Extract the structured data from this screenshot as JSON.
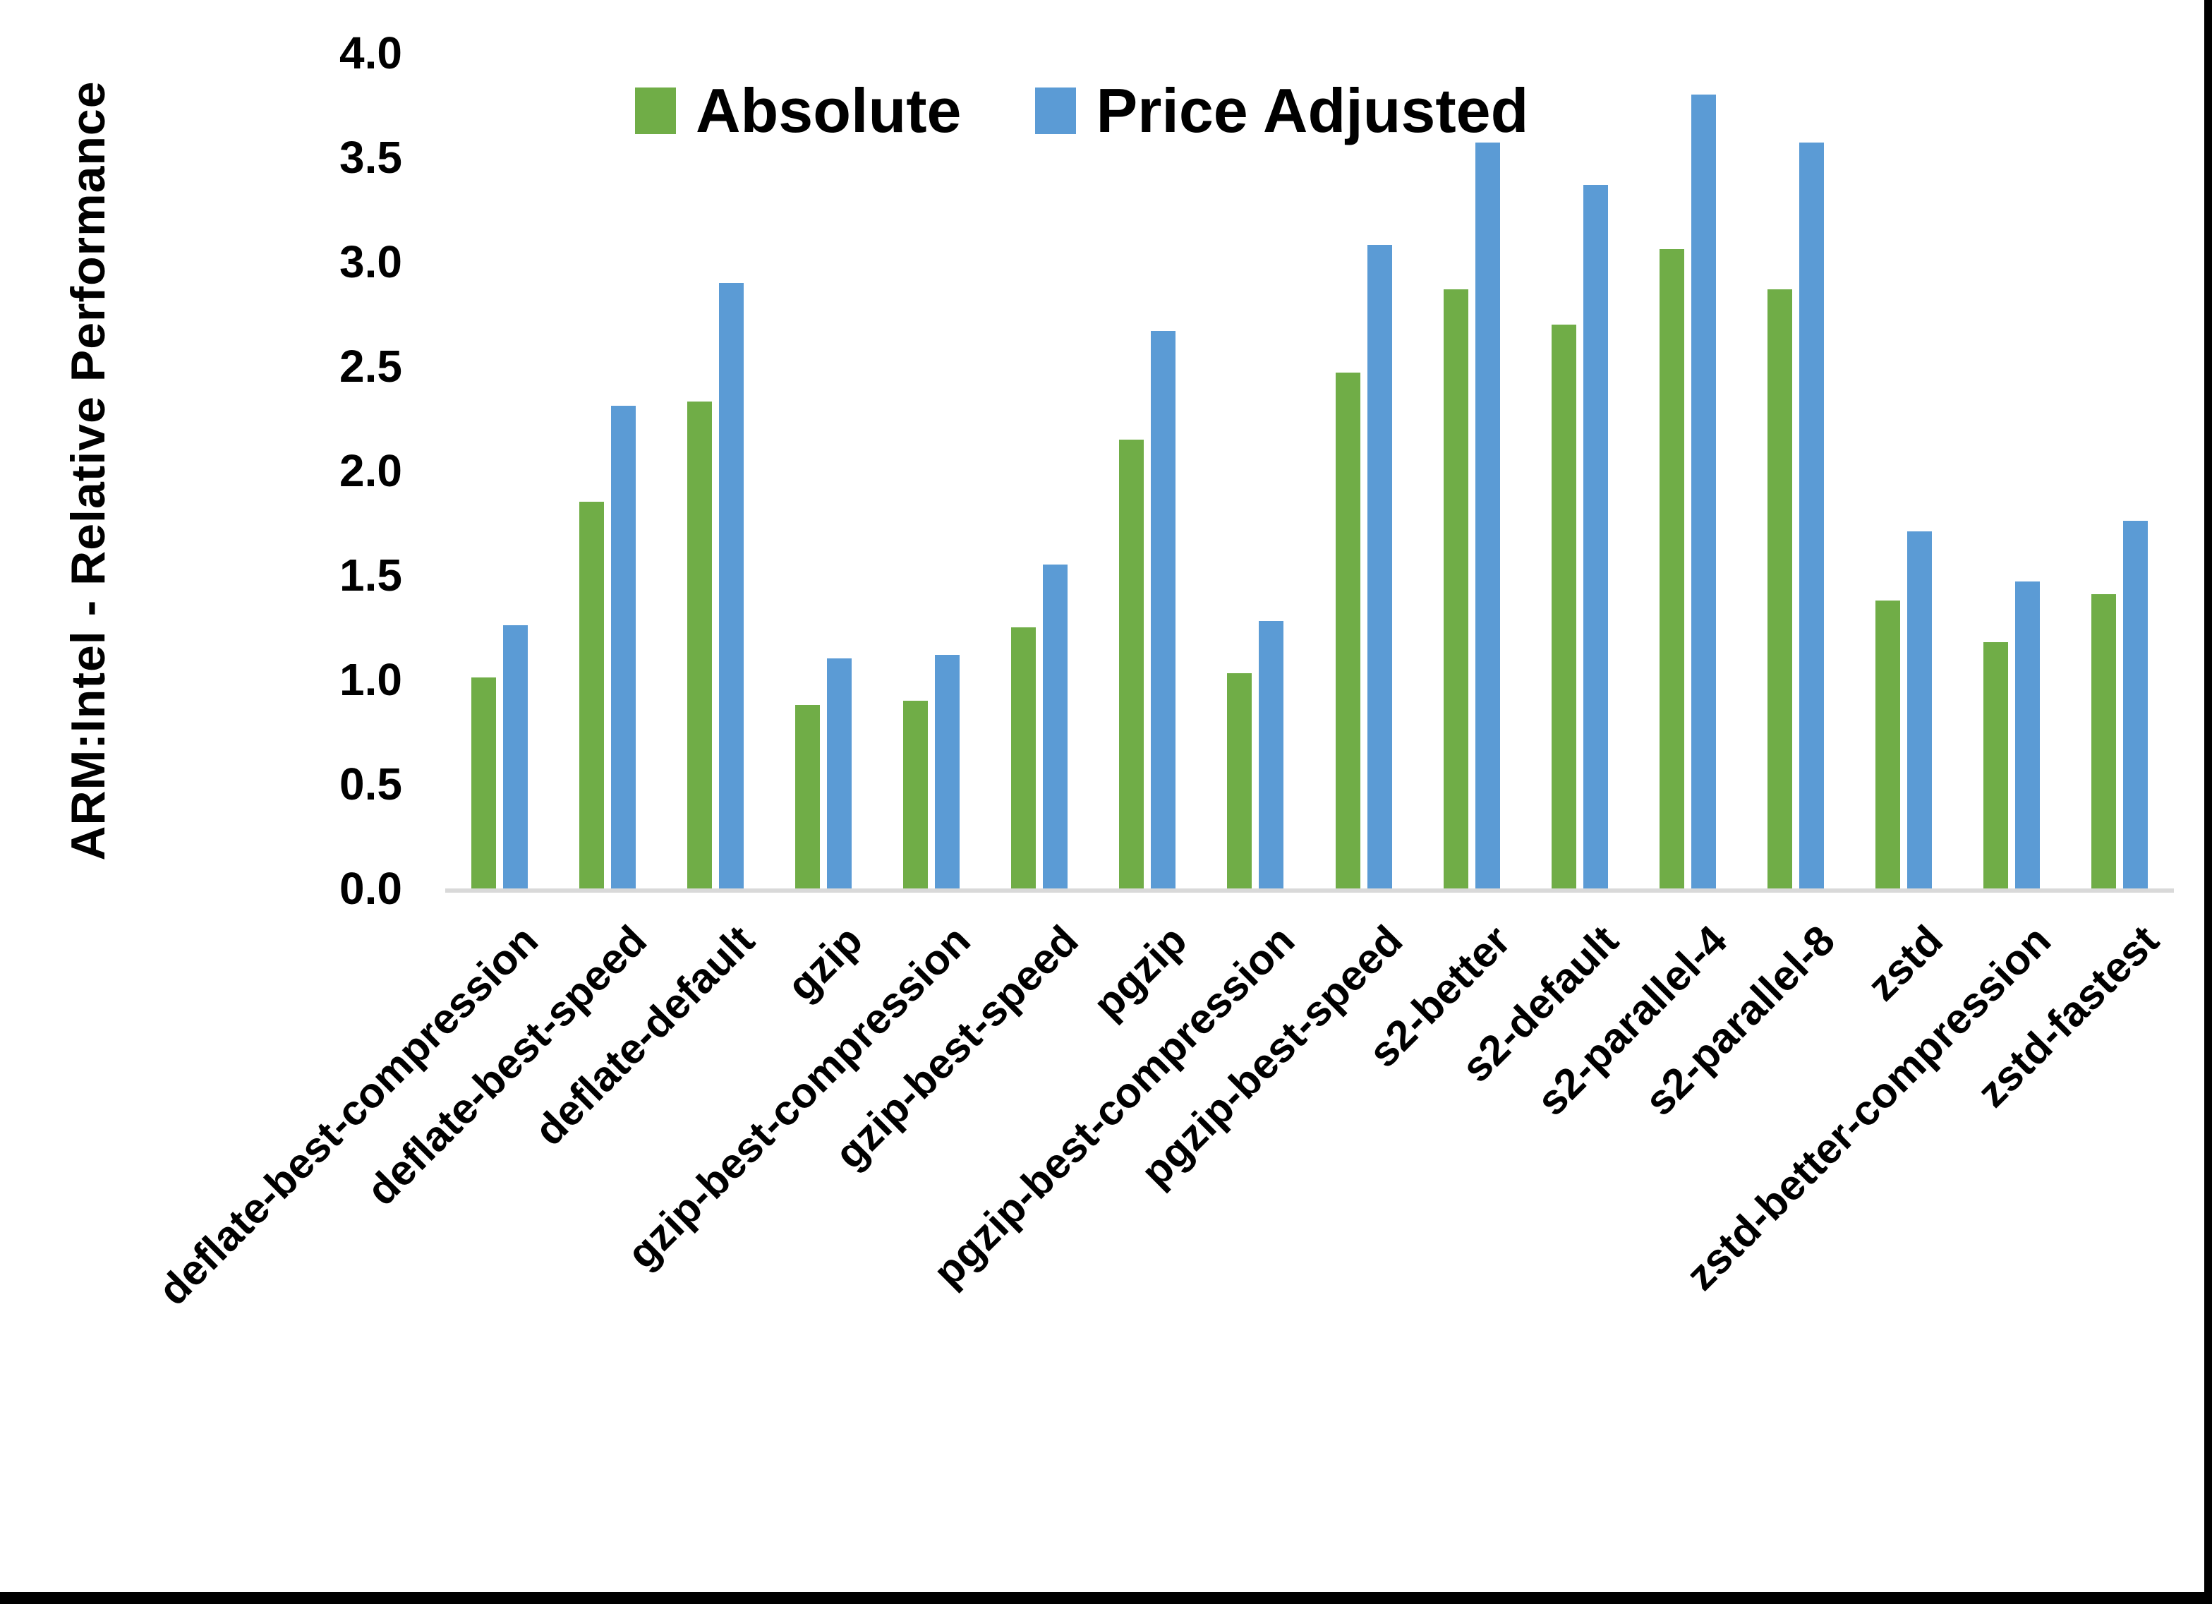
{
  "figure": {
    "background": "#FFFFFF",
    "frame_color": "#000000"
  },
  "legend": {
    "items": [
      {
        "label": "Absolute",
        "color": "#70AD47"
      },
      {
        "label": "Price Adjusted",
        "color": "#5B9BD5"
      }
    ]
  },
  "chart_data": {
    "type": "bar",
    "title": "",
    "xlabel": "",
    "ylabel": "ARM:Intel - Relative Performance",
    "ylim": [
      0.0,
      4.0
    ],
    "ytick_step": 0.5,
    "ytick_labels": [
      "4.0",
      "3.5",
      "3.0",
      "2.5",
      "2.0",
      "1.5",
      "1.0",
      "0.5",
      "0.0"
    ],
    "grid": false,
    "legend_position": "top-inside",
    "axis_line_color": "#D9D9D9",
    "categories": [
      "deflate-best-compression",
      "deflate-best-speed",
      "deflate-default",
      "gzip",
      "gzip-best-compression",
      "gzip-best-speed",
      "pgzip",
      "pgzip-best-compression",
      "pgzip-best-speed",
      "s2-better",
      "s2-default",
      "s2-parallel-4",
      "s2-parallel-8",
      "zstd",
      "zstd-better-compression",
      "zstd-fastest"
    ],
    "series": [
      {
        "name": "Absolute",
        "color": "#70AD47",
        "values": [
          1.01,
          1.85,
          2.33,
          0.88,
          0.9,
          1.25,
          2.15,
          1.03,
          2.47,
          2.87,
          2.7,
          3.06,
          2.87,
          1.38,
          1.18,
          1.41
        ]
      },
      {
        "name": "Price Adjusted",
        "color": "#5B9BD5",
        "values": [
          1.26,
          2.31,
          2.9,
          1.1,
          1.12,
          1.55,
          2.67,
          1.28,
          3.08,
          3.57,
          3.37,
          3.8,
          3.57,
          1.71,
          1.47,
          1.76
        ]
      }
    ]
  }
}
